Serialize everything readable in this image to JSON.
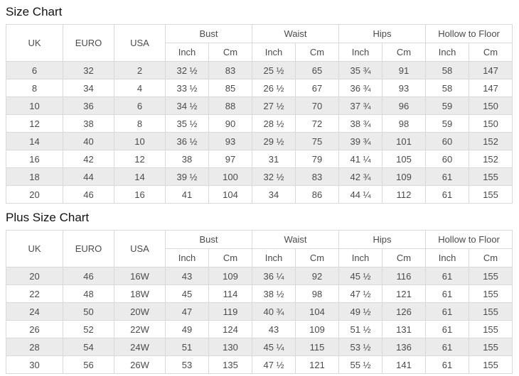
{
  "tables": [
    {
      "title": "Size Chart",
      "headers": {
        "uk": "UK",
        "euro": "EURO",
        "usa": "USA"
      },
      "groups": [
        {
          "label": "Bust"
        },
        {
          "label": "Waist"
        },
        {
          "label": "Hips"
        },
        {
          "label": "Hollow to Floor"
        }
      ],
      "units": {
        "inch": "Inch",
        "cm": "Cm"
      },
      "rows": [
        [
          "6",
          "32",
          "2",
          "32 ½",
          "83",
          "25 ½",
          "65",
          "35 ¾",
          "91",
          "58",
          "147"
        ],
        [
          "8",
          "34",
          "4",
          "33 ½",
          "85",
          "26 ½",
          "67",
          "36 ¾",
          "93",
          "58",
          "147"
        ],
        [
          "10",
          "36",
          "6",
          "34 ½",
          "88",
          "27 ½",
          "70",
          "37 ¾",
          "96",
          "59",
          "150"
        ],
        [
          "12",
          "38",
          "8",
          "35 ½",
          "90",
          "28 ½",
          "72",
          "38 ¾",
          "98",
          "59",
          "150"
        ],
        [
          "14",
          "40",
          "10",
          "36 ½",
          "93",
          "29 ½",
          "75",
          "39 ¾",
          "101",
          "60",
          "152"
        ],
        [
          "16",
          "42",
          "12",
          "38",
          "97",
          "31",
          "79",
          "41 ¼",
          "105",
          "60",
          "152"
        ],
        [
          "18",
          "44",
          "14",
          "39 ½",
          "100",
          "32 ½",
          "83",
          "42 ¾",
          "109",
          "61",
          "155"
        ],
        [
          "20",
          "46",
          "16",
          "41",
          "104",
          "34",
          "86",
          "44 ¼",
          "112",
          "61",
          "155"
        ]
      ]
    },
    {
      "title": "Plus Size Chart",
      "headers": {
        "uk": "UK",
        "euro": "EURO",
        "usa": "USA"
      },
      "groups": [
        {
          "label": "Bust"
        },
        {
          "label": "Waist"
        },
        {
          "label": "Hips"
        },
        {
          "label": "Hollow to Floor"
        }
      ],
      "units": {
        "inch": "Inch",
        "cm": "Cm"
      },
      "rows": [
        [
          "20",
          "46",
          "16W",
          "43",
          "109",
          "36 ¼",
          "92",
          "45 ½",
          "116",
          "61",
          "155"
        ],
        [
          "22",
          "48",
          "18W",
          "45",
          "114",
          "38 ½",
          "98",
          "47 ½",
          "121",
          "61",
          "155"
        ],
        [
          "24",
          "50",
          "20W",
          "47",
          "119",
          "40 ¾",
          "104",
          "49 ½",
          "126",
          "61",
          "155"
        ],
        [
          "26",
          "52",
          "22W",
          "49",
          "124",
          "43",
          "109",
          "51 ½",
          "131",
          "61",
          "155"
        ],
        [
          "28",
          "54",
          "24W",
          "51",
          "130",
          "45 ¼",
          "115",
          "53 ½",
          "136",
          "61",
          "155"
        ],
        [
          "30",
          "56",
          "26W",
          "53",
          "135",
          "47 ½",
          "121",
          "55 ½",
          "141",
          "61",
          "155"
        ]
      ]
    }
  ],
  "colors": {
    "row_shaded": "#ebebeb",
    "border": "#d9d9d9",
    "text": "#4b4b4b",
    "title": "#111111"
  }
}
